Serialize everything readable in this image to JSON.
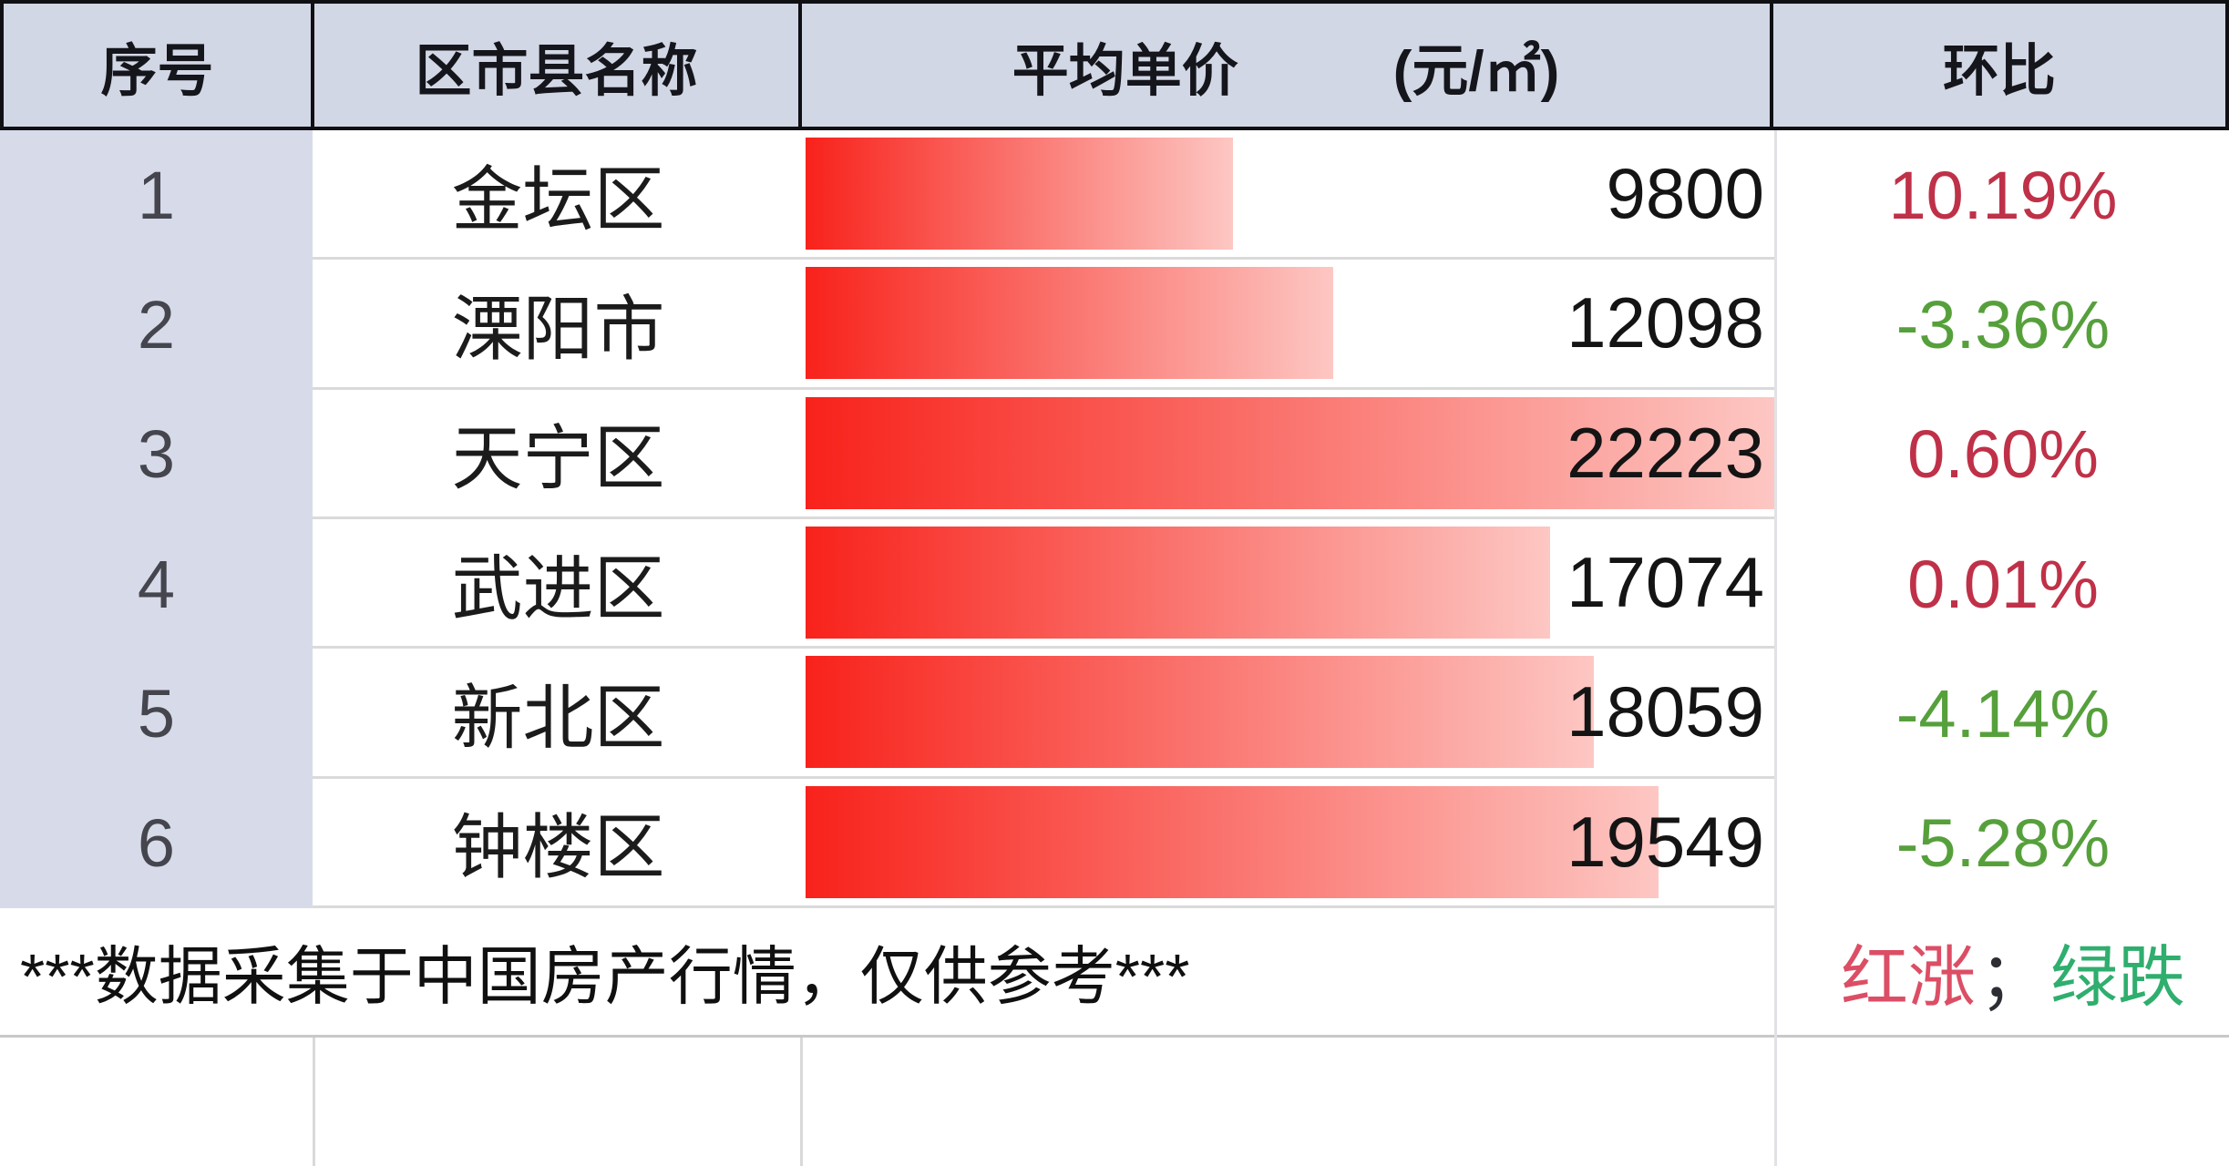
{
  "table": {
    "columns": [
      {
        "label": "序号"
      },
      {
        "label": "区市县名称"
      },
      {
        "label": "平均单价",
        "unit": "(元/㎡)"
      },
      {
        "label": "环比"
      }
    ],
    "bar_max": 22223,
    "rows": [
      {
        "index": "1",
        "district": "金坛区",
        "price": 9800,
        "change": "10.19%",
        "direction": "up"
      },
      {
        "index": "2",
        "district": "溧阳市",
        "price": 12098,
        "change": "-3.36%",
        "direction": "down"
      },
      {
        "index": "3",
        "district": "天宁区",
        "price": 22223,
        "change": "0.60%",
        "direction": "up"
      },
      {
        "index": "4",
        "district": "武进区",
        "price": 17074,
        "change": "0.01%",
        "direction": "up"
      },
      {
        "index": "5",
        "district": "新北区",
        "price": 18059,
        "change": "-4.14%",
        "direction": "down"
      },
      {
        "index": "6",
        "district": "钟楼区",
        "price": 19549,
        "change": "-5.28%",
        "direction": "down"
      }
    ]
  },
  "footer": {
    "note": "***数据采集于中国房产行情，仅供参考***",
    "legend": {
      "up": "红涨",
      "separator": "；",
      "down": "绿跌"
    }
  },
  "colors": {
    "header_bg": "#d2d7e5",
    "index_bg": "#d7dbe9",
    "bar_start": "#f8221b",
    "bar_end": "#fdc7c3",
    "up": "#bf3148",
    "down": "#56a03c",
    "legend_up": "#dc4e65",
    "legend_down": "#2fae6e"
  },
  "chart_data": {
    "type": "bar",
    "orientation": "horizontal",
    "title": "平均单价(元/㎡)",
    "categories": [
      "金坛区",
      "溧阳市",
      "天宁区",
      "武进区",
      "新北区",
      "钟楼区"
    ],
    "values": [
      9800,
      12098,
      22223,
      17074,
      18059,
      19549
    ],
    "series": [
      {
        "name": "平均单价(元/㎡)",
        "values": [
          9800,
          12098,
          22223,
          17074,
          18059,
          19549
        ]
      },
      {
        "name": "环比(%)",
        "values": [
          10.19,
          -3.36,
          0.6,
          0.01,
          -4.14,
          -5.28
        ]
      }
    ],
    "xlim": [
      0,
      22223
    ],
    "grid": false,
    "legend_note": "红涨；绿跌",
    "bar_color": "red gradient left #f8221b to right #fdc7c3"
  }
}
